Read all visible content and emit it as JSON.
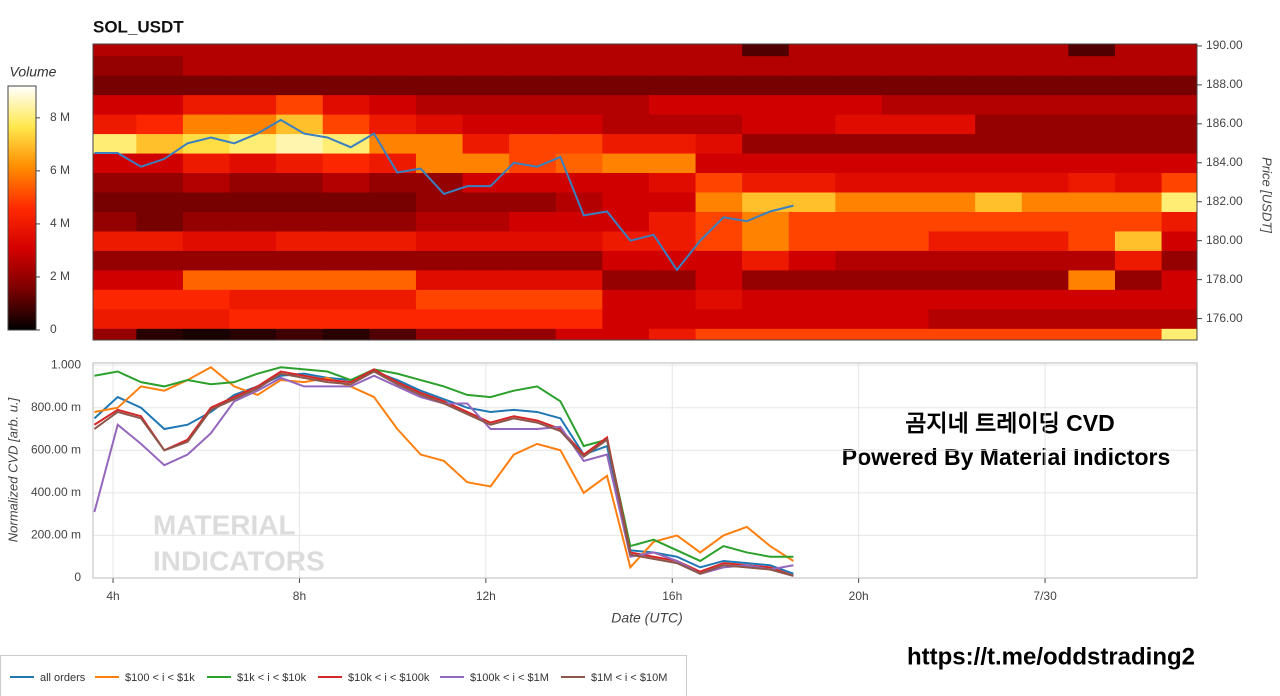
{
  "chart_data": [
    {
      "type": "heatmap",
      "title": "SOL_USDT",
      "y_label": "Price [USDT]",
      "colorbar_label": "Volume",
      "x": [
        4,
        5,
        6,
        7,
        8,
        9,
        10,
        11,
        12,
        13,
        14,
        15,
        16,
        17,
        18,
        19,
        20,
        21,
        22,
        23,
        24,
        25,
        26,
        27
      ],
      "y": [
        175,
        176,
        177,
        178,
        179,
        180,
        181,
        182,
        183,
        184,
        185,
        186,
        187,
        188,
        189,
        190
      ],
      "z": [
        [
          2,
          0.5,
          0.3,
          0.5,
          0.8,
          0.5,
          1,
          2,
          2,
          2,
          3,
          3,
          4,
          5,
          5,
          5,
          5,
          5,
          5,
          5,
          5,
          5,
          5,
          8
        ],
        [
          4,
          4,
          4,
          4.5,
          4.5,
          4.5,
          4.5,
          4.5,
          4.5,
          4.5,
          4.5,
          3,
          3,
          3,
          3,
          3,
          3,
          3,
          2.5,
          2.5,
          2.5,
          2.5,
          2.5,
          2.5
        ],
        [
          4.5,
          4.5,
          4.5,
          4,
          4,
          4,
          4,
          5,
          5,
          5,
          5,
          3,
          3,
          3.5,
          3,
          3,
          3,
          3,
          3,
          3,
          3,
          3,
          3,
          3
        ],
        [
          3,
          3,
          5.5,
          5.5,
          5.5,
          5.5,
          5.5,
          3.5,
          3.5,
          3.5,
          3.5,
          2,
          2,
          3,
          2,
          2,
          2,
          2,
          2,
          2,
          2,
          6,
          2,
          3
        ],
        [
          2,
          2,
          2,
          2,
          2,
          2,
          2,
          2,
          2,
          2,
          2,
          3,
          3,
          3,
          4,
          3,
          2.5,
          2.5,
          2.5,
          2.5,
          2.5,
          2.5,
          4,
          2
        ],
        [
          4,
          4,
          3.5,
          3.5,
          4,
          4,
          4,
          3.5,
          3.5,
          3.5,
          3.5,
          4,
          4,
          5,
          6,
          5,
          5,
          5,
          4,
          4,
          4,
          5,
          7,
          3
        ],
        [
          2,
          1.5,
          2,
          2,
          2,
          2,
          2,
          2.5,
          2.5,
          3,
          3,
          3,
          4,
          5,
          6,
          5,
          5,
          5,
          5,
          5,
          5,
          5,
          5,
          4
        ],
        [
          1.5,
          1.5,
          1.5,
          1.5,
          1.5,
          1.5,
          1.5,
          2,
          2,
          2,
          2.5,
          3,
          3,
          6,
          7,
          7,
          6,
          6,
          6,
          7,
          6,
          6,
          6,
          8
        ],
        [
          2,
          2,
          2.5,
          2,
          2,
          2.5,
          2,
          2,
          3,
          3,
          3,
          3,
          3.5,
          5,
          4,
          4,
          3.5,
          3.5,
          3.5,
          3.5,
          3.5,
          4,
          3.5,
          5
        ],
        [
          3,
          3,
          4,
          3.5,
          4,
          4.5,
          4,
          6,
          6,
          5,
          5.5,
          6,
          6,
          3,
          3,
          3,
          3,
          3,
          3,
          3,
          3,
          3,
          3,
          3
        ],
        [
          8,
          7,
          7.5,
          8,
          8.5,
          8,
          6,
          6,
          4,
          5,
          5,
          4,
          4,
          3.5,
          2,
          2,
          2,
          2,
          2,
          2,
          2,
          2,
          2,
          2
        ],
        [
          4,
          4.5,
          6,
          6,
          7,
          5,
          4,
          3.5,
          3,
          3,
          3,
          2.5,
          2.5,
          2.5,
          3,
          3,
          3.5,
          3.5,
          3.5,
          2,
          2,
          2,
          2,
          2
        ],
        [
          3,
          3,
          4,
          4,
          5,
          3.5,
          3,
          2.5,
          2.5,
          2.5,
          2.5,
          2.5,
          3,
          3,
          3,
          3,
          3,
          2.5,
          2.5,
          2.5,
          2.5,
          2.5,
          2.5,
          2.5
        ],
        [
          1.5,
          1.5,
          1.5,
          1.5,
          1.5,
          1.5,
          1.5,
          1.5,
          1.5,
          1.5,
          1.5,
          1.5,
          1.5,
          1.5,
          1.5,
          1.5,
          1.5,
          1.5,
          1.5,
          1.5,
          1.5,
          1.5,
          1.5,
          1.5
        ],
        [
          2,
          2,
          2.5,
          2.5,
          2.5,
          2.5,
          2.5,
          2.5,
          2.5,
          2.5,
          2.5,
          2.5,
          2.5,
          2.5,
          2.5,
          2.5,
          2.5,
          2.5,
          2.5,
          2.5,
          2.5,
          2.5,
          2.5,
          2.5
        ],
        [
          2.5,
          2.5,
          2.5,
          2.5,
          2.5,
          2.5,
          2.5,
          2.5,
          2.5,
          2.5,
          2.5,
          2.5,
          2.5,
          2.5,
          1,
          2.5,
          2.5,
          2.5,
          2.5,
          2.5,
          2.5,
          1,
          2.5,
          2.5
        ]
      ],
      "colorscale": [
        "#000000",
        "#7a0000",
        "#d40000",
        "#ff2a00",
        "#ff8c00",
        "#ffe84d",
        "#ffffff"
      ],
      "zlim": [
        0,
        9.2
      ],
      "zticks": [
        0,
        {
          "value": 2,
          "label": "2 M"
        },
        {
          "value": 4,
          "label": "4 M"
        },
        {
          "value": 6,
          "label": "6 M"
        },
        {
          "value": 8,
          "label": "8 M"
        }
      ],
      "xlim": [
        3.57,
        27.26
      ],
      "ylim": [
        174.9,
        190.1
      ],
      "yticks": [
        {
          "value": 176,
          "label": "176.00"
        },
        {
          "value": 178,
          "label": "178.00"
        },
        {
          "value": 180,
          "label": "180.00"
        },
        {
          "value": 182,
          "label": "182.00"
        },
        {
          "value": 184,
          "label": "184.00"
        },
        {
          "value": 186,
          "label": "186.00"
        },
        {
          "value": 188,
          "label": "188.00"
        },
        {
          "value": 190,
          "label": "190.00"
        }
      ],
      "price_line": {
        "color": "#3a7fc0",
        "x": [
          3.6,
          4.1,
          4.6,
          5.1,
          5.6,
          6.1,
          6.6,
          7.1,
          7.6,
          8.1,
          8.6,
          9.1,
          9.6,
          10.1,
          10.6,
          11.1,
          11.6,
          12.1,
          12.6,
          13.1,
          13.6,
          14.1,
          14.6,
          15.1,
          15.6,
          16.1,
          16.6,
          17.1,
          17.6,
          18.1,
          18.6
        ],
        "values": [
          184.5,
          184.5,
          183.8,
          184.2,
          185.0,
          185.3,
          185.0,
          185.5,
          186.2,
          185.5,
          185.3,
          184.8,
          185.5,
          183.5,
          183.7,
          182.4,
          182.8,
          182.8,
          184.0,
          183.8,
          184.3,
          181.3,
          181.5,
          180.0,
          180.3,
          178.5,
          180.0,
          181.2,
          181.0,
          181.5,
          181.8
        ]
      }
    },
    {
      "type": "line",
      "y_label": "Normalized CVD [arb. u.]",
      "x_label": "Date (UTC)",
      "annotations": [
        "곰지네 트레이딩 CVD",
        "Powered By Material Indictors"
      ],
      "watermark": [
        "MATERIAL",
        "INDICATORS"
      ],
      "x": [
        3.6,
        4.1,
        4.6,
        5.1,
        5.6,
        6.1,
        6.6,
        7.1,
        7.6,
        8.1,
        8.6,
        9.1,
        9.6,
        10.1,
        10.6,
        11.1,
        11.6,
        12.1,
        12.6,
        13.1,
        13.6,
        14.1,
        14.6,
        15.1,
        15.6,
        16.1,
        16.6,
        17.1,
        17.6,
        18.1,
        18.6
      ],
      "xlim": [
        3.57,
        27.26
      ],
      "xticks": [
        {
          "value": 4,
          "label": "4h"
        },
        {
          "value": 8,
          "label": "8h"
        },
        {
          "value": 12,
          "label": "12h"
        },
        {
          "value": 16,
          "label": "16h"
        },
        {
          "value": 20,
          "label": "20h"
        },
        {
          "value": 24,
          "label": "7/30"
        }
      ],
      "ylim": [
        0,
        1.01
      ],
      "yticks": [
        0,
        {
          "value": 0.2,
          "label": "200.00 m"
        },
        {
          "value": 0.4,
          "label": "400.00 m"
        },
        {
          "value": 0.6,
          "label": "600.00 m"
        },
        {
          "value": 0.8,
          "label": "800.00 m"
        },
        {
          "value": 1,
          "label": "1.000"
        }
      ],
      "grid": true,
      "legend": "bottom",
      "series": [
        {
          "name": "all orders",
          "color": "#1f77b4",
          "values": [
            0.75,
            0.85,
            0.8,
            0.7,
            0.72,
            0.78,
            0.86,
            0.9,
            0.95,
            0.96,
            0.94,
            0.93,
            0.97,
            0.93,
            0.88,
            0.84,
            0.8,
            0.78,
            0.79,
            0.78,
            0.75,
            0.58,
            0.62,
            0.13,
            0.12,
            0.1,
            0.05,
            0.08,
            0.07,
            0.06,
            0.02
          ]
        },
        {
          "name": "$100 < i < $1k",
          "color": "#ff7f0e",
          "values": [
            0.78,
            0.8,
            0.9,
            0.88,
            0.93,
            0.99,
            0.9,
            0.86,
            0.93,
            0.92,
            0.94,
            0.9,
            0.85,
            0.7,
            0.58,
            0.55,
            0.45,
            0.43,
            0.58,
            0.63,
            0.6,
            0.4,
            0.48,
            0.05,
            0.17,
            0.2,
            0.12,
            0.2,
            0.24,
            0.15,
            0.08
          ]
        },
        {
          "name": "$1k < i < $10k",
          "color": "#2ca02c",
          "values": [
            0.95,
            0.97,
            0.92,
            0.9,
            0.93,
            0.91,
            0.92,
            0.96,
            0.99,
            0.98,
            0.97,
            0.93,
            0.98,
            0.96,
            0.93,
            0.9,
            0.86,
            0.85,
            0.88,
            0.9,
            0.83,
            0.62,
            0.65,
            0.15,
            0.18,
            0.13,
            0.08,
            0.15,
            0.12,
            0.1,
            0.1
          ]
        },
        {
          "name": "$10k < i < $100k",
          "color": "#d62728",
          "values": [
            0.72,
            0.79,
            0.76,
            0.6,
            0.65,
            0.8,
            0.85,
            0.9,
            0.97,
            0.95,
            0.93,
            0.92,
            0.98,
            0.92,
            0.87,
            0.83,
            0.78,
            0.73,
            0.76,
            0.74,
            0.7,
            0.58,
            0.66,
            0.12,
            0.1,
            0.08,
            0.03,
            0.07,
            0.06,
            0.05,
            0.01
          ]
        },
        {
          "name": "$100k < i < $1M",
          "color": "#9467bd",
          "values": [
            0.31,
            0.72,
            0.63,
            0.53,
            0.58,
            0.68,
            0.83,
            0.88,
            0.94,
            0.9,
            0.9,
            0.9,
            0.95,
            0.9,
            0.85,
            0.82,
            0.82,
            0.7,
            0.7,
            0.7,
            0.71,
            0.55,
            0.58,
            0.1,
            0.12,
            0.08,
            0.02,
            0.05,
            0.06,
            0.04,
            0.06
          ]
        },
        {
          "name": "$1M < i < $10M",
          "color": "#8c564b",
          "values": [
            0.7,
            0.78,
            0.75,
            0.6,
            0.64,
            0.79,
            0.84,
            0.89,
            0.96,
            0.94,
            0.92,
            0.91,
            0.97,
            0.91,
            0.86,
            0.82,
            0.77,
            0.72,
            0.75,
            0.73,
            0.69,
            0.57,
            0.65,
            0.11,
            0.09,
            0.07,
            0.02,
            0.06,
            0.05,
            0.04,
            0.01
          ]
        }
      ]
    }
  ],
  "footer": "https://t.me/oddstrading2"
}
